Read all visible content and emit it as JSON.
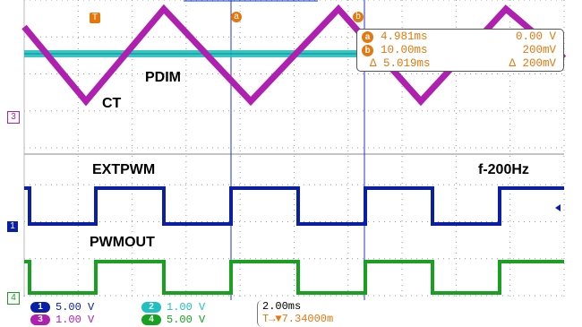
{
  "colors": {
    "ch1": "#0a1fa8",
    "ch2": "#20c0c0",
    "ch3": "#b020b0",
    "ch4": "#18a020",
    "cursor": "#e4780d",
    "grid": "#9a9a9a",
    "marker": "#0033cc"
  },
  "cursors": {
    "a_label": "a",
    "b_label": "b",
    "a_time": "4.981ms",
    "a_volt": "0.00 V",
    "b_time": "10.00ms",
    "b_volt": "200mV",
    "delta_time": "Δ 5.019ms",
    "delta_volt": "Δ 200mV"
  },
  "annotations": {
    "pdim": "PDIM",
    "ct": "CT",
    "extpwm": "EXTPWM",
    "freq": "f-200Hz",
    "pwmout": "PWMOUT"
  },
  "channel_markers": {
    "ch3": "3",
    "ch1": "1",
    "ch4": "4",
    "trigger": "T"
  },
  "channels": [
    {
      "num": "1",
      "scale": "5.00 V"
    },
    {
      "num": "2",
      "scale": "1.00 V"
    },
    {
      "num": "3",
      "scale": "1.00 V"
    },
    {
      "num": "4",
      "scale": "5.00 V"
    }
  ],
  "timebase": {
    "div": "2.00ms",
    "trigger": "T→▼7.34000m"
  }
}
